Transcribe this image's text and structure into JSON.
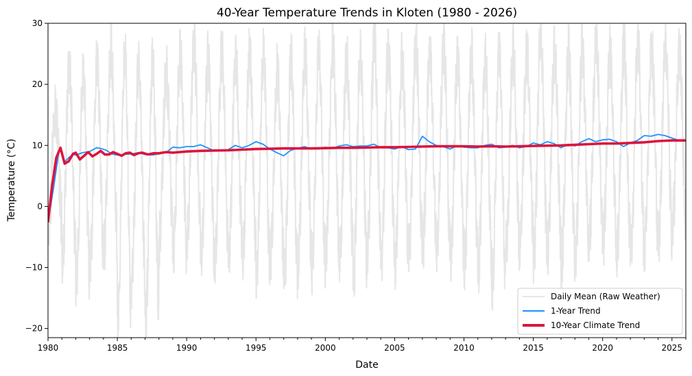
{
  "chart_data": {
    "type": "line",
    "title": "40-Year Temperature Trends in Kloten (1980 - 2026)",
    "xlabel": "Date",
    "ylabel": "Temperature (°C)",
    "xlim": [
      1980,
      2026
    ],
    "ylim": [
      -21.5,
      30
    ],
    "x_ticks": [
      1980,
      1985,
      1990,
      1995,
      2000,
      2005,
      2010,
      2015,
      2020,
      2025
    ],
    "x_tick_labels": [
      "1980",
      "1985",
      "1990",
      "1995",
      "2000",
      "2005",
      "2010",
      "2015",
      "2020",
      "2025"
    ],
    "y_ticks": [
      -20,
      -10,
      0,
      10,
      20,
      30
    ],
    "y_tick_labels": [
      "−20",
      "−10",
      "0",
      "10",
      "20",
      "30"
    ],
    "grid": false,
    "legend_position": "lower-right",
    "series": [
      {
        "name": "Daily Mean (Raw Weather)",
        "color": "#e6e6e6",
        "kind": "daily-seasonal",
        "annual_summer_peaks": [
          16,
          23,
          21,
          23,
          26,
          25,
          23,
          24,
          22,
          25,
          26,
          24,
          25,
          24,
          25,
          25,
          22,
          24,
          25,
          25,
          26,
          24,
          25,
          27,
          25,
          24,
          26,
          25,
          26,
          24,
          25,
          24,
          25,
          25,
          25,
          28,
          25,
          25,
          26,
          27,
          25,
          26,
          27,
          26,
          26,
          25
        ],
        "annual_winter_lows": [
          -3,
          -9,
          -12,
          -8,
          -7,
          -19,
          -12,
          -19,
          -5,
          -8,
          -5,
          -9,
          -8,
          -7,
          -8,
          -11,
          -9,
          -12,
          -9,
          -10,
          -7,
          -8,
          -11,
          -7,
          -8,
          -9,
          -7,
          -6,
          -7,
          -8,
          -9,
          -10,
          -13,
          -7,
          -6,
          -8,
          -7,
          -9,
          -8,
          -5,
          -6,
          -7,
          -8,
          -6,
          -5,
          -3
        ]
      },
      {
        "name": "1-Year Trend",
        "color": "#1e90ff",
        "x": [
          1980.0,
          1980.4,
          1980.8,
          1981.0,
          1981.2,
          1981.5,
          1981.8,
          1982.0,
          1982.5,
          1983.0,
          1983.5,
          1983.8,
          1984.2,
          1984.6,
          1985.0,
          1985.5,
          1986.0,
          1986.5,
          1987.0,
          1987.5,
          1988.0,
          1988.5,
          1989.0,
          1989.5,
          1990.0,
          1990.5,
          1991.0,
          1991.5,
          1992.0,
          1992.5,
          1993.0,
          1993.5,
          1994.0,
          1994.5,
          1995.0,
          1995.5,
          1996.0,
          1996.5,
          1997.0,
          1997.5,
          1998.0,
          1998.5,
          1999.0,
          1999.5,
          2000.0,
          2000.5,
          2001.0,
          2001.5,
          2002.0,
          2002.5,
          2003.0,
          2003.5,
          2004.0,
          2004.5,
          2005.0,
          2005.5,
          2006.0,
          2006.5,
          2007.0,
          2007.5,
          2008.0,
          2008.5,
          2009.0,
          2009.5,
          2010.0,
          2010.5,
          2011.0,
          2011.5,
          2012.0,
          2012.5,
          2013.0,
          2013.5,
          2014.0,
          2014.5,
          2015.0,
          2015.5,
          2016.0,
          2016.5,
          2017.0,
          2017.5,
          2018.0,
          2018.5,
          2019.0,
          2019.5,
          2020.0,
          2020.5,
          2021.0,
          2021.5,
          2022.0,
          2022.5,
          2023.0,
          2023.5,
          2024.0,
          2024.5,
          2025.0,
          2025.5,
          2026.0
        ],
        "y": [
          -2.6,
          3.0,
          9.3,
          9.0,
          7.3,
          8.0,
          8.5,
          8.4,
          8.8,
          9.0,
          9.6,
          9.5,
          9.2,
          8.6,
          8.4,
          8.5,
          8.6,
          8.8,
          8.5,
          8.4,
          8.6,
          8.8,
          9.7,
          9.6,
          9.8,
          9.8,
          10.1,
          9.6,
          9.1,
          9.2,
          9.3,
          10.0,
          9.6,
          10.0,
          10.6,
          10.2,
          9.4,
          8.8,
          8.3,
          9.2,
          9.5,
          9.8,
          9.4,
          9.4,
          9.7,
          9.5,
          9.9,
          10.1,
          9.8,
          9.9,
          9.9,
          10.2,
          9.6,
          9.6,
          9.4,
          9.8,
          9.3,
          9.4,
          11.5,
          10.6,
          10.0,
          9.8,
          9.4,
          9.9,
          9.7,
          9.6,
          9.6,
          10.0,
          10.2,
          9.6,
          9.7,
          10.0,
          9.6,
          9.8,
          10.4,
          10.1,
          10.6,
          10.3,
          9.6,
          10.2,
          9.9,
          10.6,
          11.1,
          10.6,
          10.9,
          11.0,
          10.6,
          9.8,
          10.4,
          10.8,
          11.6,
          11.5,
          11.8,
          11.6,
          11.2,
          10.8,
          10.9
        ]
      },
      {
        "name": "10-Year Climate Trend",
        "color": "#dc143c",
        "x": [
          1980.0,
          1980.3,
          1980.6,
          1980.9,
          1981.2,
          1981.5,
          1981.8,
          1982.0,
          1982.3,
          1982.6,
          1982.9,
          1983.2,
          1983.5,
          1983.8,
          1984.1,
          1984.4,
          1984.7,
          1985.0,
          1985.3,
          1985.6,
          1985.9,
          1986.2,
          1986.5,
          1986.8,
          1987.2,
          1987.6,
          1988.0,
          1988.5,
          1989.0,
          1989.5,
          1990.0,
          1991.0,
          1992.0,
          1993.0,
          1994.0,
          1995.0,
          1996.0,
          1997.0,
          1998.0,
          1999.0,
          2000.0,
          2001.0,
          2002.0,
          2003.0,
          2004.0,
          2005.0,
          2006.0,
          2007.0,
          2008.0,
          2009.0,
          2010.0,
          2011.0,
          2012.0,
          2013.0,
          2014.0,
          2015.0,
          2016.0,
          2017.0,
          2018.0,
          2019.0,
          2020.0,
          2021.0,
          2022.0,
          2023.0,
          2024.0,
          2025.0,
          2026.0
        ],
        "y": [
          -2.6,
          3.5,
          8.0,
          9.6,
          7.0,
          7.4,
          8.6,
          8.8,
          7.7,
          8.3,
          8.9,
          8.2,
          8.6,
          9.1,
          8.5,
          8.5,
          8.9,
          8.6,
          8.3,
          8.7,
          8.8,
          8.4,
          8.7,
          8.8,
          8.5,
          8.7,
          8.7,
          8.9,
          8.8,
          8.9,
          9.0,
          9.1,
          9.15,
          9.2,
          9.3,
          9.4,
          9.45,
          9.5,
          9.5,
          9.5,
          9.55,
          9.6,
          9.6,
          9.65,
          9.7,
          9.7,
          9.75,
          9.8,
          9.85,
          9.85,
          9.85,
          9.8,
          9.85,
          9.8,
          9.85,
          9.9,
          9.95,
          10.0,
          10.1,
          10.2,
          10.3,
          10.3,
          10.4,
          10.5,
          10.7,
          10.8,
          10.8
        ]
      }
    ]
  }
}
